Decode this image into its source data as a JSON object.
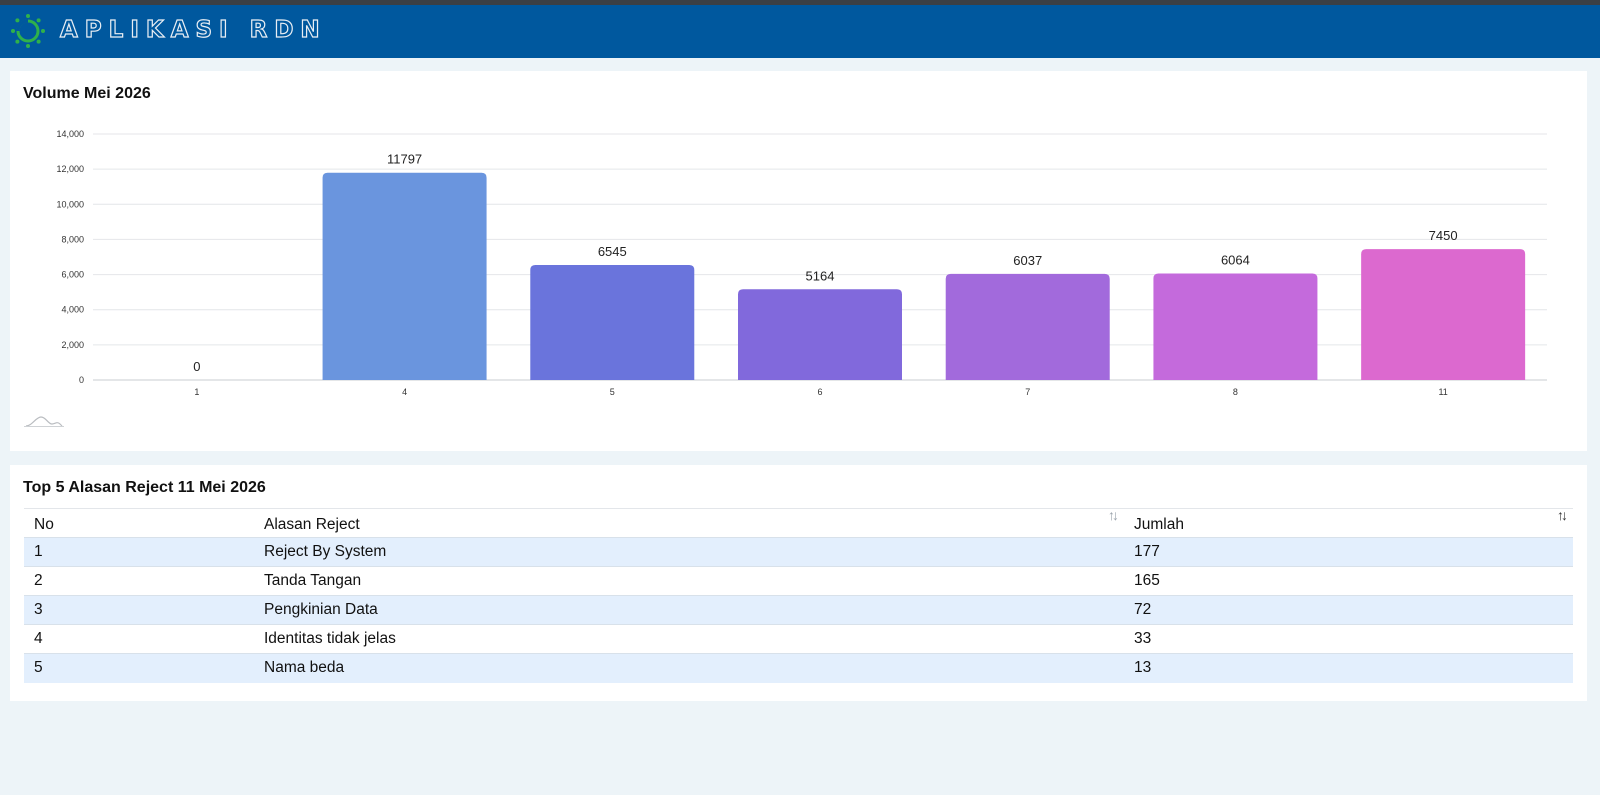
{
  "header": {
    "app_title": "APLIKASI RDN"
  },
  "volume_card": {
    "title": "Volume Mei 2026"
  },
  "chart_data": {
    "type": "bar",
    "title": "Volume Mei 2026",
    "categories": [
      "1",
      "4",
      "5",
      "6",
      "7",
      "8",
      "11"
    ],
    "values": [
      0,
      11797,
      6545,
      5164,
      6037,
      6064,
      7450
    ],
    "ylim": [
      0,
      14000
    ],
    "yticks": [
      "0",
      "2,000",
      "4,000",
      "6,000",
      "8,000",
      "10,000",
      "12,000",
      "14,000"
    ],
    "ytick_values": [
      0,
      2000,
      4000,
      6000,
      8000,
      10000,
      12000,
      14000
    ],
    "grid": true,
    "bar_colors": [
      "#6a8fdc",
      "#6a95de",
      "#6a74dc",
      "#8169dc",
      "#a26adc",
      "#c46adc",
      "#dc69cf"
    ]
  },
  "reject_card": {
    "title": "Top 5 Alasan Reject 11 Mei 2026",
    "columns": [
      "No",
      "Alasan Reject",
      "Jumlah"
    ],
    "rows": [
      {
        "no": "1",
        "alasan": "Reject By System",
        "jumlah": "177"
      },
      {
        "no": "2",
        "alasan": "Tanda Tangan",
        "jumlah": "165"
      },
      {
        "no": "3",
        "alasan": "Pengkinian Data",
        "jumlah": "72"
      },
      {
        "no": "4",
        "alasan": "Identitas tidak jelas",
        "jumlah": "33"
      },
      {
        "no": "5",
        "alasan": "Nama beda",
        "jumlah": "13"
      }
    ]
  },
  "icons": {
    "logo": "sun-ring-logo-icon",
    "sort": "sort-arrows-icon",
    "chart_type": "area-wave-icon"
  }
}
